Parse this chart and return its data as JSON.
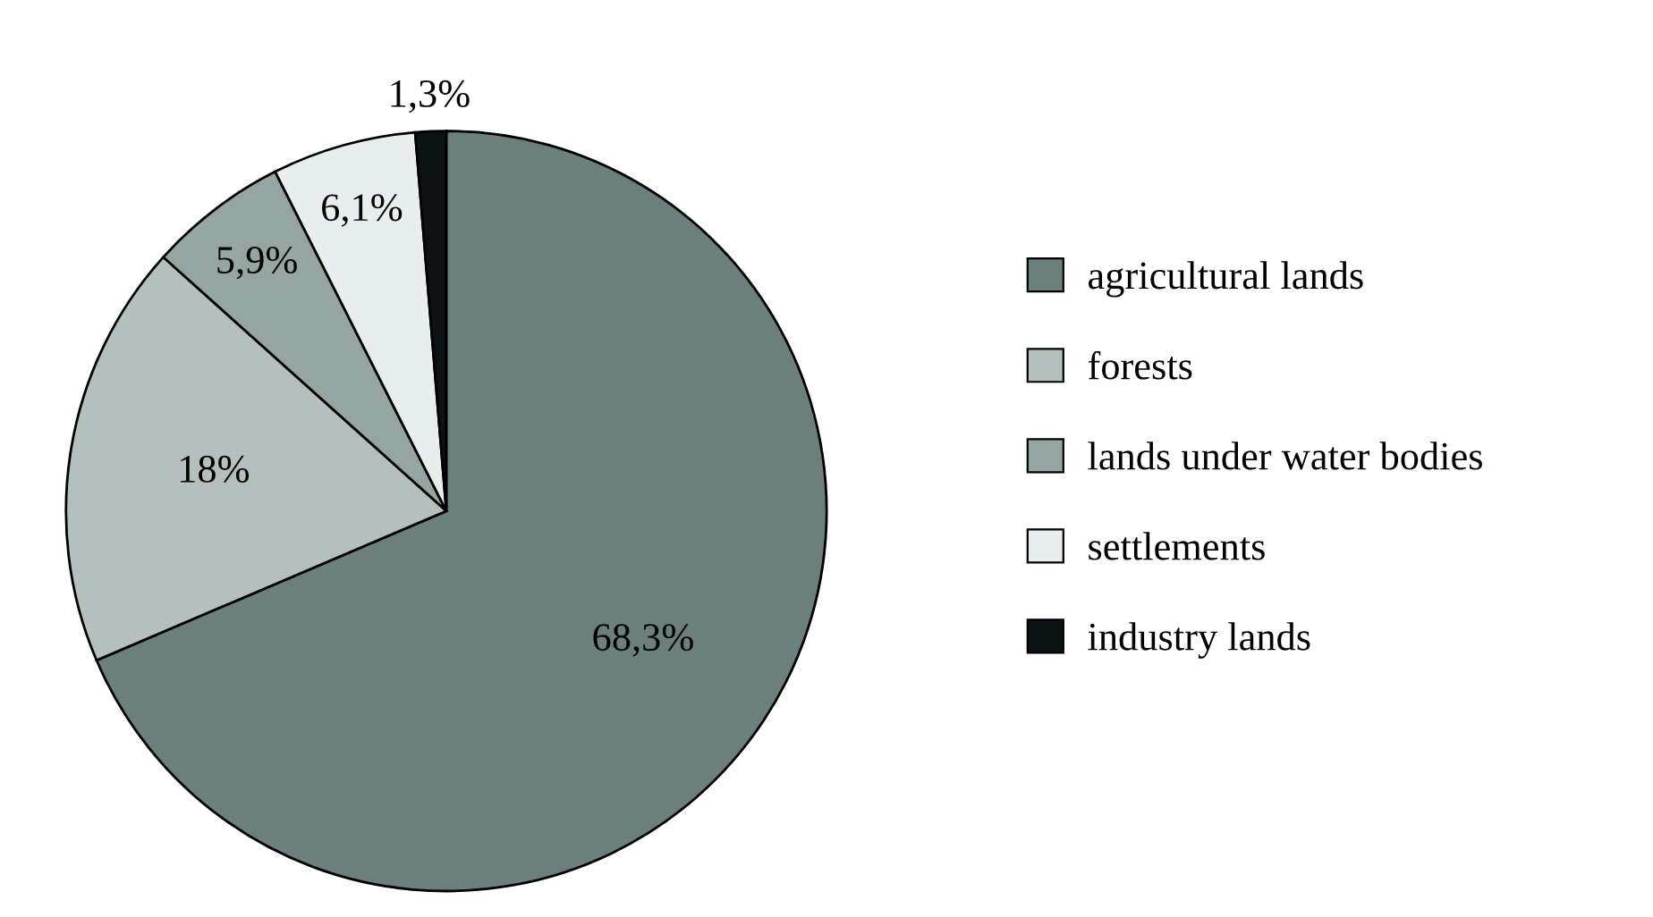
{
  "chart_data": {
    "type": "pie",
    "categories": [
      "agricultural lands",
      "forests",
      "lands under water bodies",
      "settlements",
      "industry lands"
    ],
    "values": [
      68.3,
      18,
      5.9,
      6.1,
      1.3
    ],
    "colors": [
      "#6b7f7c",
      "#b3c0bd",
      "#94a5a2",
      "#e8eeee",
      "#0b1315"
    ],
    "value_labels": [
      "68,3%",
      "18%",
      "5,9%",
      "6,1%",
      "1,3%"
    ],
    "legend": "right"
  }
}
